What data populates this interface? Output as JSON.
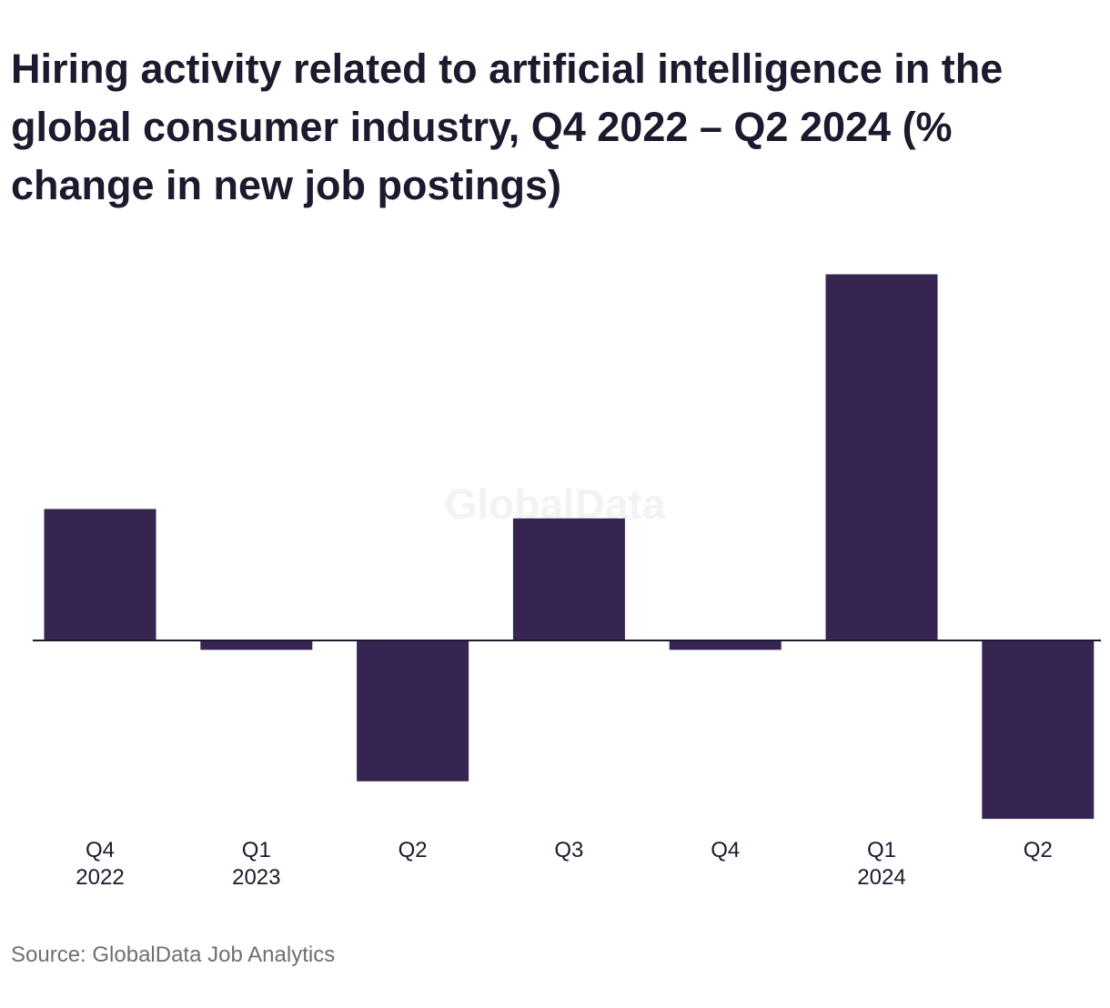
{
  "chart_data": {
    "type": "bar",
    "title": "Hiring activity related to artificial intelligence in the global consumer industry, Q4 2022 – Q2 2024 (% change in new job postings)",
    "categories": [
      "Q4 2022",
      "Q1 2023",
      "Q2 2023",
      "Q3 2023",
      "Q4 2023",
      "Q1 2024",
      "Q2 2024"
    ],
    "tick_labels": [
      [
        "Q4",
        "2022"
      ],
      [
        "Q1",
        "2023"
      ],
      [
        "Q2",
        ""
      ],
      [
        "Q3",
        ""
      ],
      [
        "Q4",
        ""
      ],
      [
        "Q1",
        "2024"
      ],
      [
        "Q2",
        ""
      ]
    ],
    "values": [
      14,
      -1,
      -15,
      13,
      -1,
      39,
      -19
    ],
    "ylim": [
      -20,
      40
    ],
    "grid": false,
    "bar_color": "#362551",
    "axis_color": "#1b1a2e"
  },
  "watermark": "GlobalData",
  "source": "Source: GlobalData Job Analytics"
}
